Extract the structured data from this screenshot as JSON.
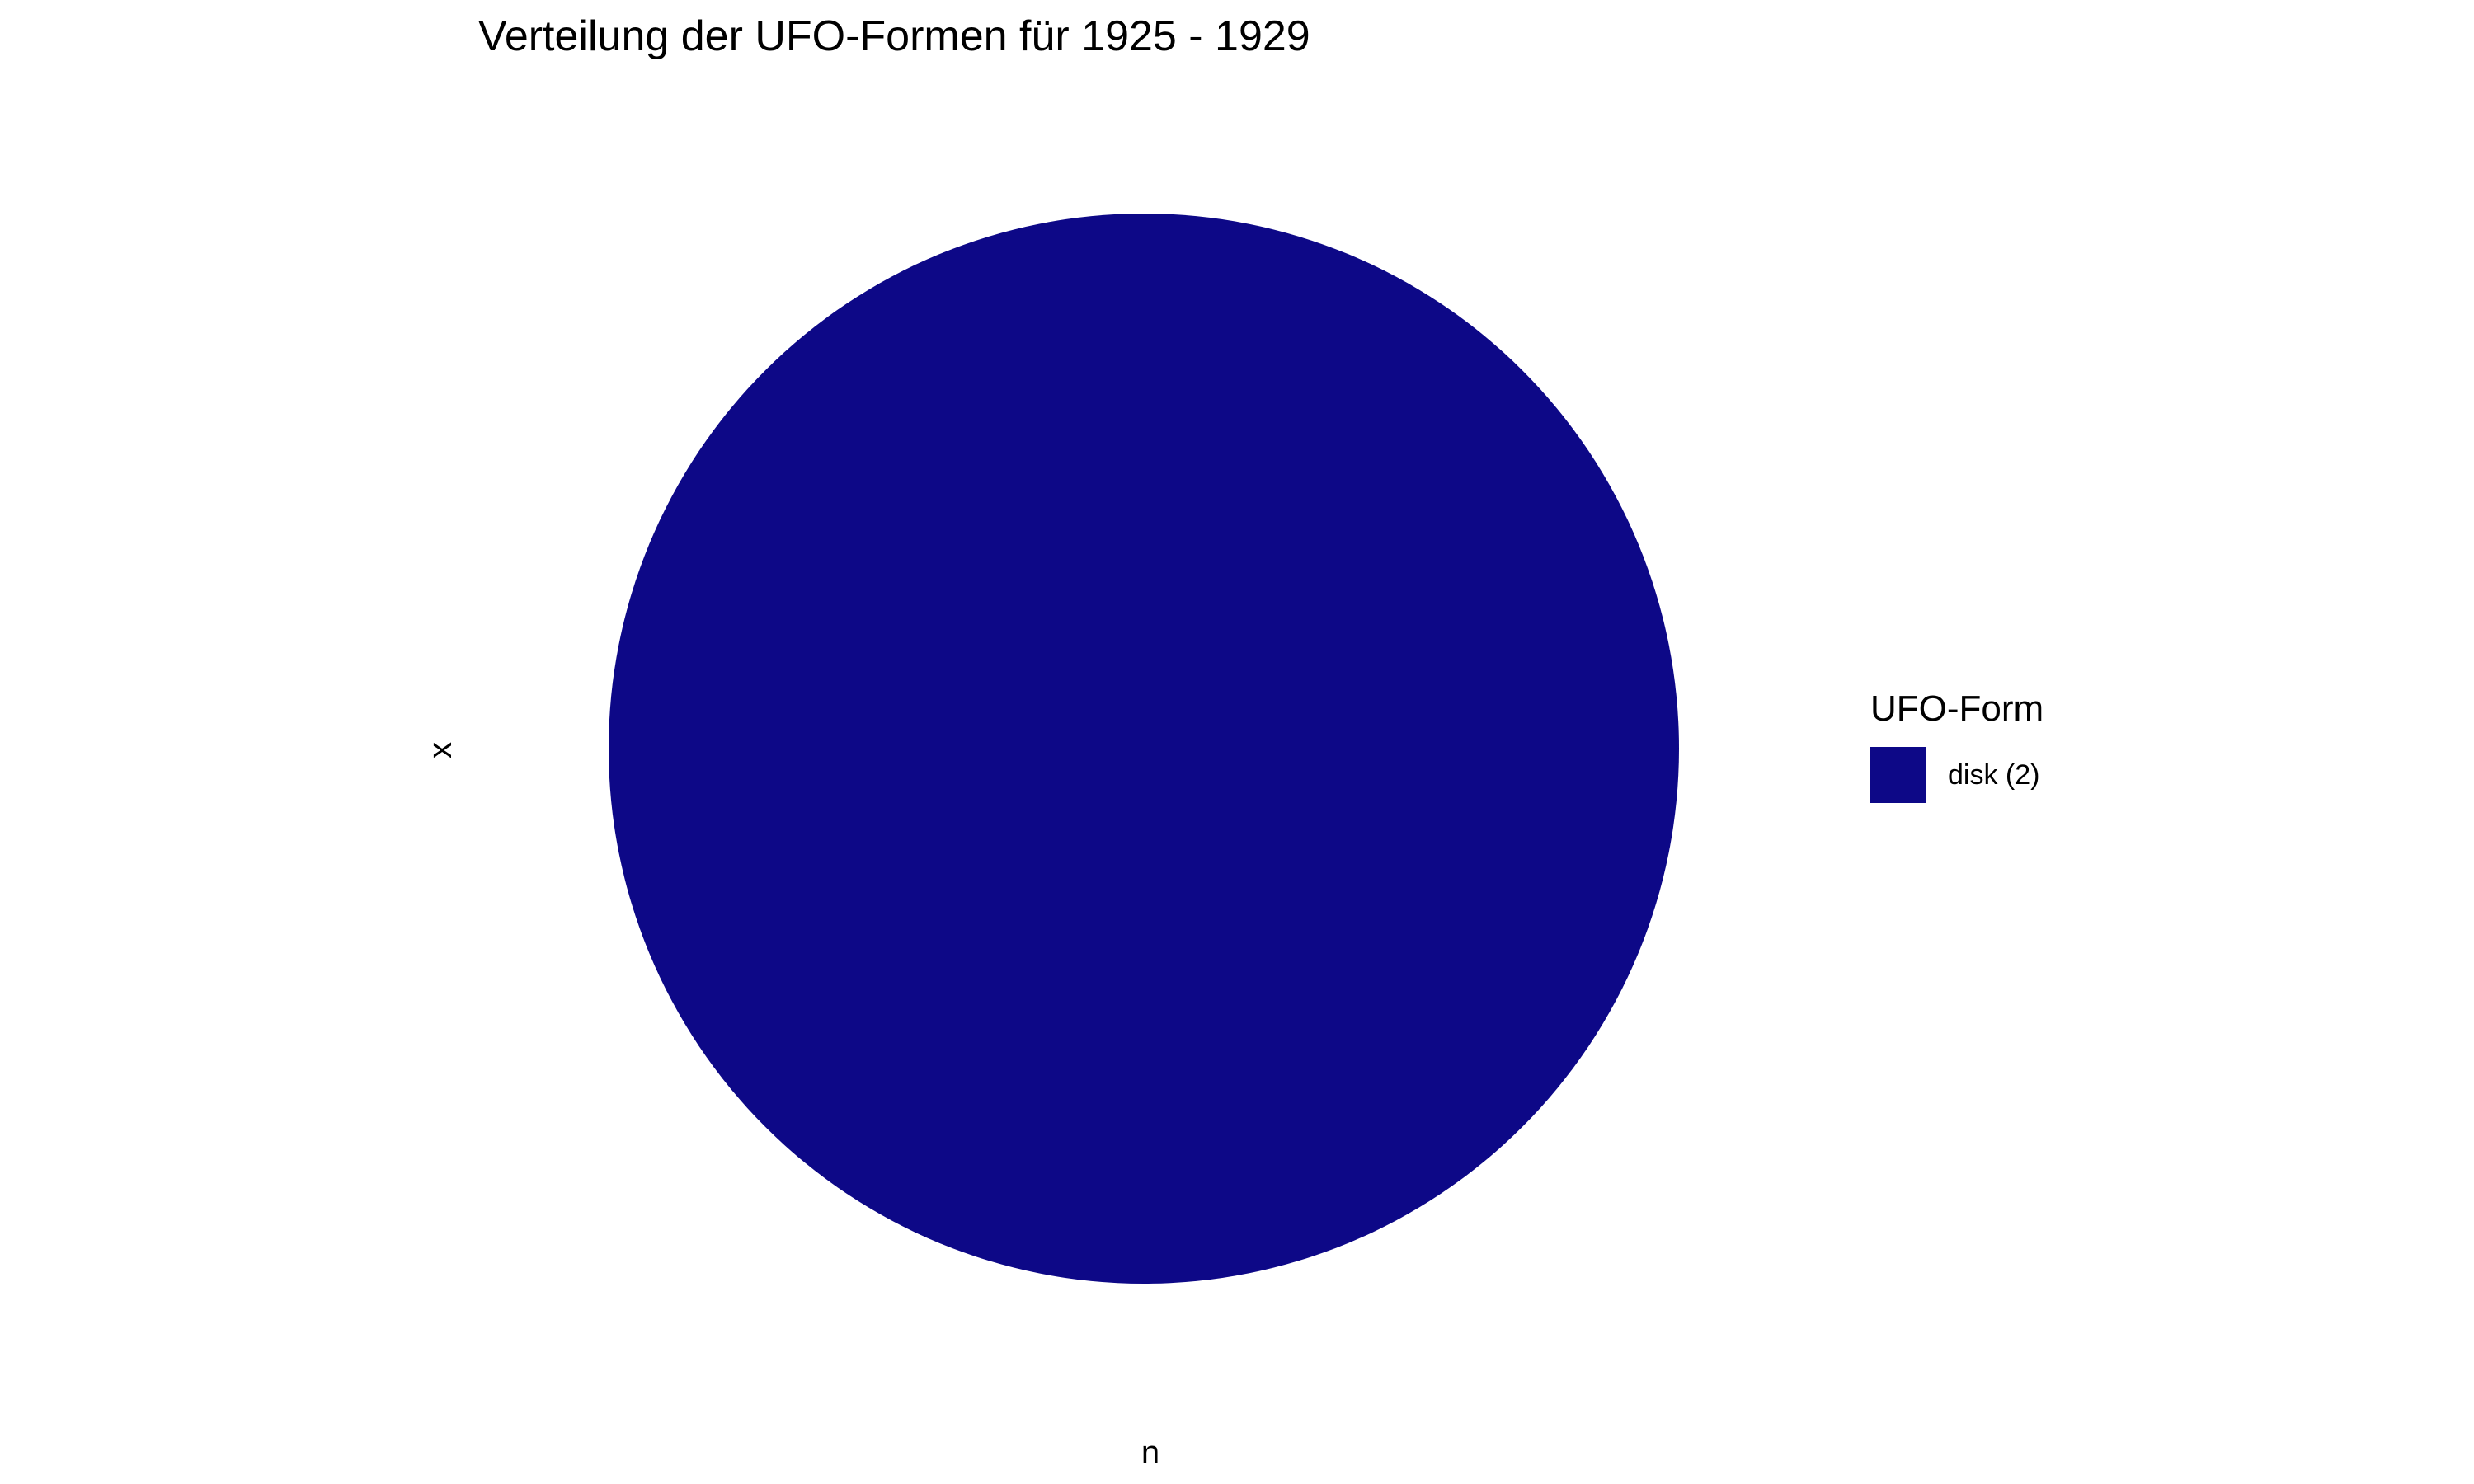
{
  "chart_data": {
    "type": "pie",
    "title": "Verteilung der UFO-Formen für 1925 - 1929",
    "xlabel": "n",
    "ylabel": "x",
    "legend": {
      "title": "UFO-Form",
      "placement": "right",
      "entries": [
        {
          "label": "disk (2)",
          "color": "#0D0887"
        }
      ]
    },
    "slices": [
      {
        "label": "disk",
        "value": 2,
        "color": "#0D0887"
      }
    ],
    "grid": false
  }
}
